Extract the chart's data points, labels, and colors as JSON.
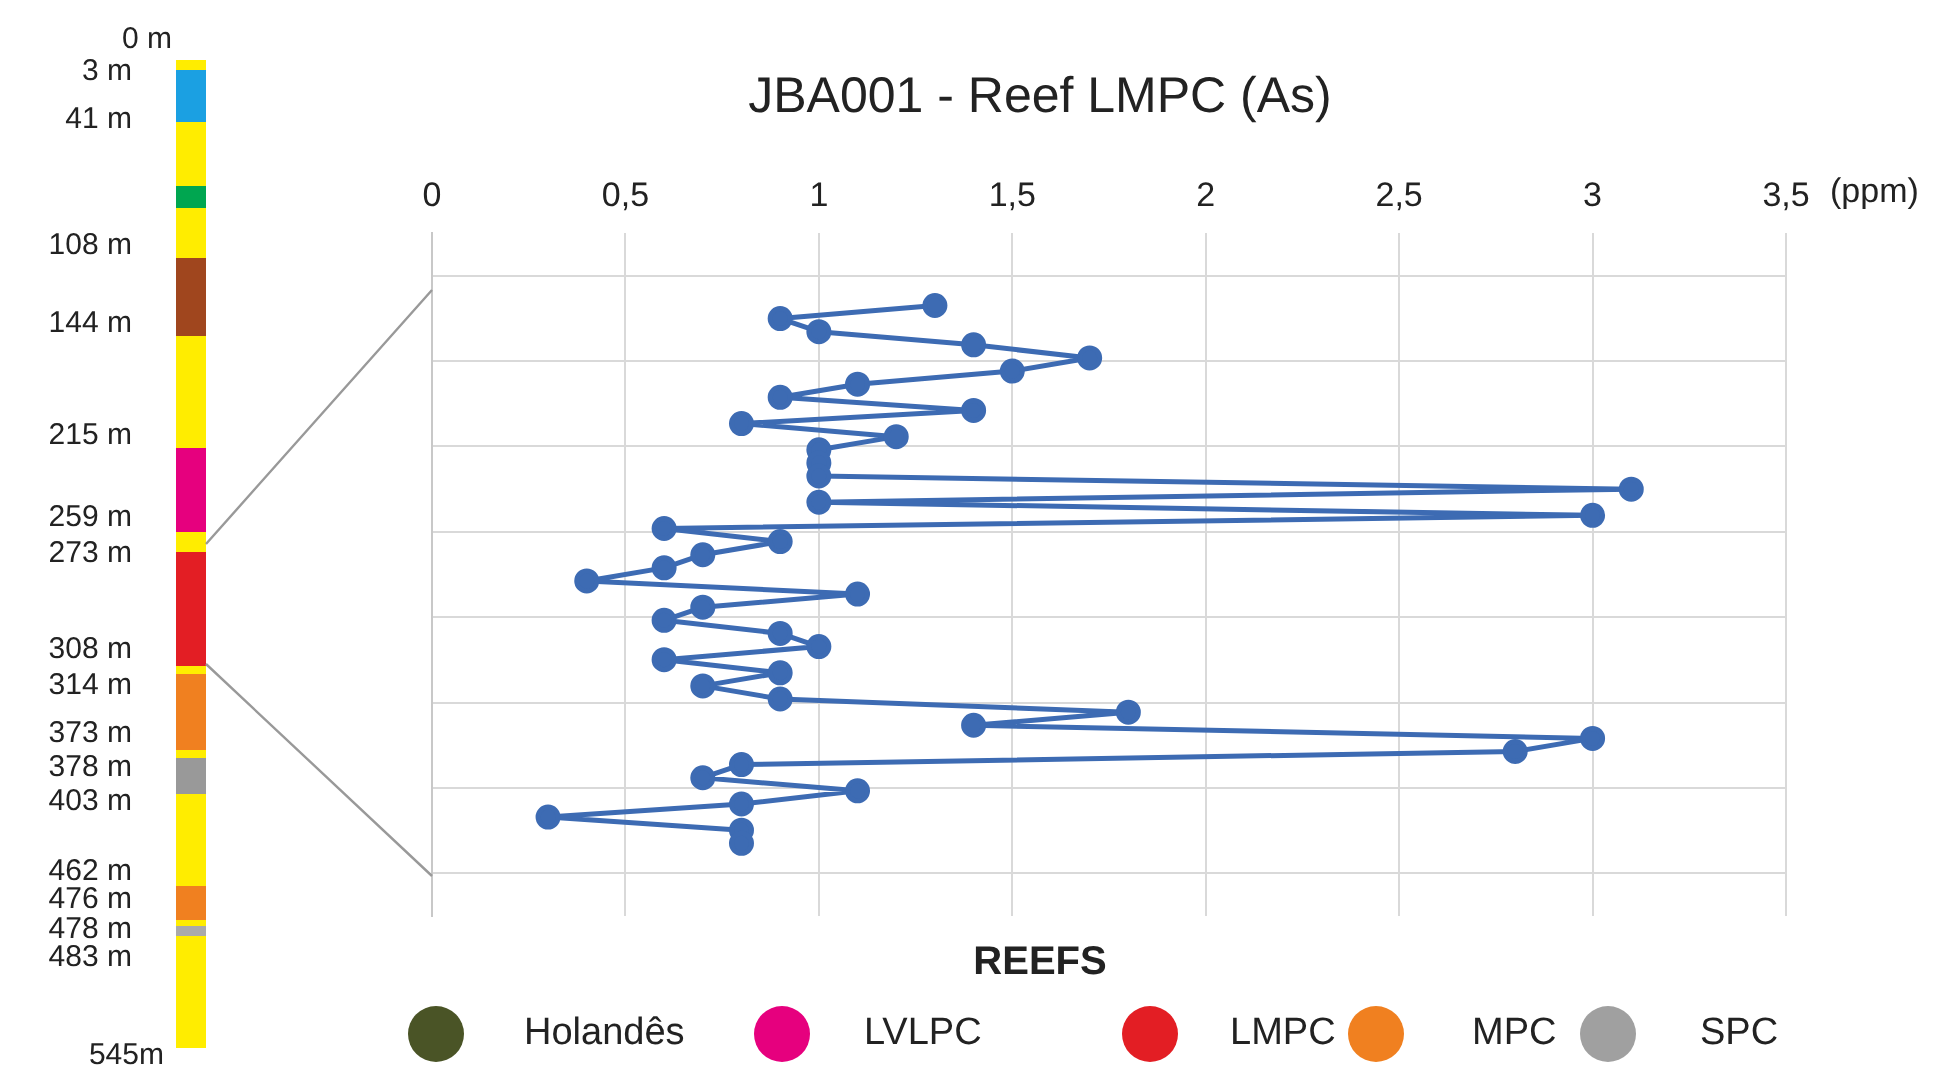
{
  "chart_data": {
    "type": "line",
    "orientation": "horizontal",
    "title": "JBA001 - Reef LMPC (As)",
    "xlabel": "(ppm)",
    "categories": [
      null,
      null,
      null,
      null,
      null,
      null,
      null,
      null,
      null,
      null,
      null,
      null,
      null,
      null,
      null,
      null,
      null,
      null,
      null,
      null,
      null,
      null,
      null,
      null,
      null,
      null,
      null,
      null,
      null,
      null,
      null,
      null,
      null,
      null,
      null,
      null,
      null,
      null,
      null,
      null,
      null,
      null
    ],
    "series": [
      {
        "color": "#3d6bb3",
        "values": [
          1.3,
          0.9,
          1.0,
          1.4,
          1.7,
          1.5,
          1.1,
          0.9,
          1.4,
          0.8,
          1.2,
          1.0,
          1.0,
          1.0,
          3.1,
          1.0,
          3.0,
          0.6,
          0.9,
          0.7,
          0.6,
          0.4,
          1.1,
          0.7,
          0.6,
          0.9,
          1.0,
          0.6,
          0.9,
          0.7,
          0.9,
          1.8,
          1.4,
          3.0,
          2.8,
          0.8,
          0.7,
          1.1,
          0.8,
          0.3,
          0.8,
          0.8
        ]
      }
    ],
    "xlim": [
      0,
      3.5
    ],
    "xticks": [
      0,
      {
        "value": 0.5,
        "label": "0,5"
      },
      1,
      {
        "value": 1.5,
        "label": "1,5"
      },
      2,
      {
        "value": 2.5,
        "label": "2,5"
      },
      3,
      {
        "value": 3.5,
        "label": "3,5"
      }
    ],
    "grid": true,
    "marker": "circle",
    "line_style": "solid",
    "legend": false,
    "legend_title": "REEFS",
    "annotations": [
      "0 m",
      "3 m",
      "41 m",
      "108 m",
      "144 m",
      "215 m",
      "259 m",
      "273 m",
      "308 m",
      "314 m",
      "373 m",
      "378 m",
      "403 m",
      "462 m",
      "476 m",
      "478 m",
      "483 m",
      "545m",
      "Holandês",
      "LVLPC",
      "LMPC",
      "MPC",
      "SPC"
    ]
  }
}
